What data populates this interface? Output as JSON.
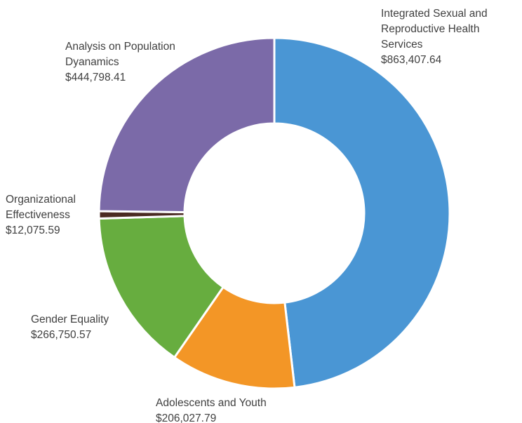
{
  "chart_data": {
    "type": "pie",
    "style": "donut",
    "title": "",
    "slices": [
      {
        "label_lines": [
          "Integrated Sexual and",
          "Reproductive Health",
          "Services"
        ],
        "value_text": "$863,407.64",
        "value": 863407.64,
        "color": "#4a96d4"
      },
      {
        "label_lines": [
          "Adolescents and Youth"
        ],
        "value_text": "$206,027.79",
        "value": 206027.79,
        "color": "#f39626"
      },
      {
        "label_lines": [
          "Gender Equality"
        ],
        "value_text": "$266,750.57",
        "value": 266750.57,
        "color": "#67ad3f"
      },
      {
        "label_lines": [
          "Organizational",
          "Effectiveness"
        ],
        "value_text": "$12,075.59",
        "value": 12075.59,
        "color": "#4a2a22"
      },
      {
        "label_lines": [
          "Analysis on Population",
          "Dyanamics"
        ],
        "value_text": "$444,798.41",
        "value": 444798.41,
        "color": "#7b6aa8"
      }
    ]
  }
}
